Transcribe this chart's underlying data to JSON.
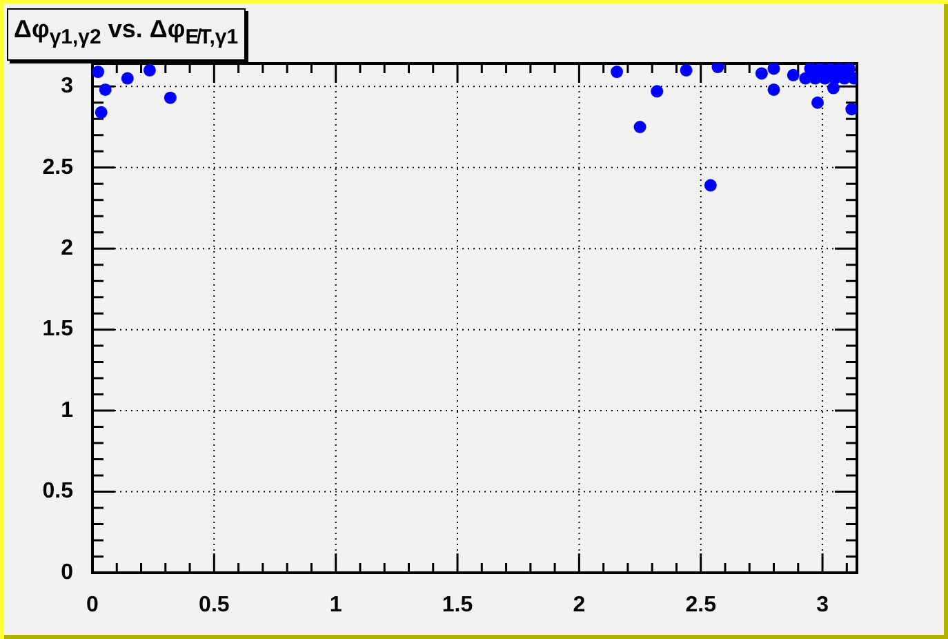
{
  "chart_data": {
    "type": "scatter",
    "title": "Δφ$_{γ1,γ2}$ vs. Δφ$_{E̸T,γ1}$",
    "x": [
      0.023,
      0.053,
      0.036,
      0.144,
      0.235,
      0.32,
      2.155,
      2.25,
      2.32,
      2.44,
      2.54,
      2.57,
      2.75,
      2.8,
      2.8,
      2.88,
      2.98,
      3.045,
      3.12,
      2.93,
      2.97,
      3.01,
      3.05,
      3.09,
      3.13,
      2.95,
      2.99,
      3.03,
      3.07,
      3.11
    ],
    "values": [
      3.09,
      2.98,
      2.84,
      3.05,
      3.1,
      2.93,
      3.09,
      2.75,
      2.97,
      3.1,
      2.39,
      3.12,
      3.08,
      2.98,
      3.11,
      3.07,
      2.9,
      2.99,
      2.86,
      3.05,
      3.05,
      3.05,
      3.05,
      3.05,
      3.05,
      3.11,
      3.11,
      3.11,
      3.11,
      3.11
    ],
    "color": "#0000ff",
    "marker": "circle",
    "grid": true,
    "xlim": [
      0,
      3.1416
    ],
    "ylim": [
      0,
      3.1416
    ],
    "xticks": [
      0,
      {
        "value": 0.1,
        "label": null
      },
      {
        "value": 0.2,
        "label": null
      },
      {
        "value": 0.3,
        "label": null
      },
      {
        "value": 0.4,
        "label": null
      },
      0.5,
      {
        "value": 0.6,
        "label": null
      },
      {
        "value": 0.7,
        "label": null
      },
      {
        "value": 0.8,
        "label": null
      },
      {
        "value": 0.9,
        "label": null
      },
      1,
      {
        "value": 1.1,
        "label": null
      },
      {
        "value": 1.2,
        "label": null
      },
      {
        "value": 1.3,
        "label": null
      },
      {
        "value": 1.4,
        "label": null
      },
      1.5,
      {
        "value": 1.6,
        "label": null
      },
      {
        "value": 1.7,
        "label": null
      },
      {
        "value": 1.8,
        "label": null
      },
      {
        "value": 1.9,
        "label": null
      },
      2,
      {
        "value": 2.1,
        "label": null
      },
      {
        "value": 2.2,
        "label": null
      },
      {
        "value": 2.3,
        "label": null
      },
      {
        "value": 2.4,
        "label": null
      },
      2.5,
      {
        "value": 2.6,
        "label": null
      },
      {
        "value": 2.7,
        "label": null
      },
      {
        "value": 2.8,
        "label": null
      },
      {
        "value": 2.9,
        "label": null
      },
      3,
      {
        "value": 3.1,
        "label": null
      }
    ],
    "yticks": [
      0,
      {
        "value": 0.1,
        "label": null
      },
      {
        "value": 0.2,
        "label": null
      },
      {
        "value": 0.3,
        "label": null
      },
      {
        "value": 0.4,
        "label": null
      },
      0.5,
      {
        "value": 0.6,
        "label": null
      },
      {
        "value": 0.7,
        "label": null
      },
      {
        "value": 0.8,
        "label": null
      },
      {
        "value": 0.9,
        "label": null
      },
      1,
      {
        "value": 1.1,
        "label": null
      },
      {
        "value": 1.2,
        "label": null
      },
      {
        "value": 1.3,
        "label": null
      },
      {
        "value": 1.4,
        "label": null
      },
      1.5,
      {
        "value": 1.6,
        "label": null
      },
      {
        "value": 1.7,
        "label": null
      },
      {
        "value": 1.8,
        "label": null
      },
      {
        "value": 1.9,
        "label": null
      },
      2,
      {
        "value": 2.1,
        "label": null
      },
      {
        "value": 2.2,
        "label": null
      },
      {
        "value": 2.3,
        "label": null
      },
      {
        "value": 2.4,
        "label": null
      },
      2.5,
      {
        "value": 2.6,
        "label": null
      },
      {
        "value": 2.7,
        "label": null
      },
      {
        "value": 2.8,
        "label": null
      },
      {
        "value": 2.9,
        "label": null
      },
      3,
      {
        "value": 3.1,
        "label": null
      }
    ]
  }
}
